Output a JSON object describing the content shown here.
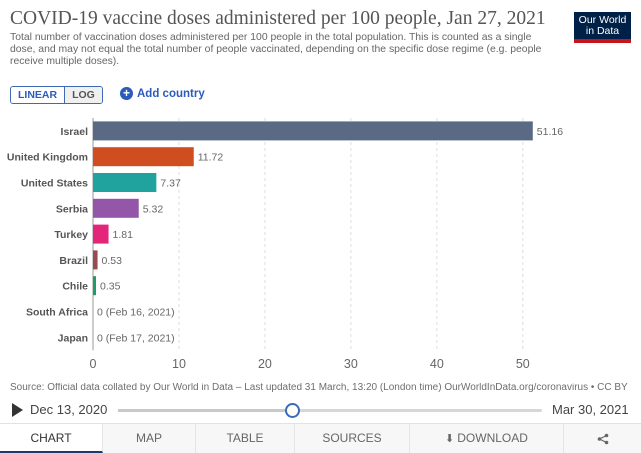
{
  "header": {
    "title": "COVID-19 vaccine doses administered per 100 people, Jan 27, 2021",
    "subtitle": "Total number of vaccination doses administered per 100 people in the total population. This is counted as a single dose, and may not equal the total number of people vaccinated, depending on the specific dose regime (e.g. people receive multiple doses).",
    "logo_line1": "Our World",
    "logo_line2": "in Data"
  },
  "controls": {
    "linear_label": "LINEAR",
    "log_label": "LOG",
    "add_country_label": "Add country",
    "add_icon": "plus-circle-icon"
  },
  "chart_data": {
    "type": "bar",
    "orientation": "horizontal",
    "categories": [
      "Israel",
      "United Kingdom",
      "United States",
      "Serbia",
      "Turkey",
      "Brazil",
      "Chile",
      "South Africa",
      "Japan"
    ],
    "values": [
      51.16,
      11.72,
      7.37,
      5.32,
      1.81,
      0.53,
      0.35,
      0,
      0
    ],
    "value_labels": [
      "51.16",
      "11.72",
      "7.37",
      "5.32",
      "1.81",
      "0.53",
      "0.35",
      "0 (Feb 16, 2021)",
      "0 (Feb 17, 2021)"
    ],
    "colors": [
      "#5a6a85",
      "#cf4d1f",
      "#20a39e",
      "#9356a8",
      "#e3267a",
      "#9b4a52",
      "#1f9b66",
      "#888888",
      "#888888"
    ],
    "xlim": [
      0,
      52
    ],
    "xticks": [
      0,
      10,
      20,
      30,
      40,
      50
    ],
    "grid": true,
    "axis_scale": "linear"
  },
  "footer": {
    "source_text": "Source: Official data collated by Our World in Data – Last updated 31 March, 13:20 (London time)",
    "source_link": "OurWorldInData.org/coronavirus • CC BY"
  },
  "timeline": {
    "start_label": "Dec 13, 2020",
    "end_label": "Mar 30, 2021",
    "position_fraction": 0.41
  },
  "tabs": [
    {
      "label": "CHART",
      "active": true
    },
    {
      "label": "MAP",
      "active": false
    },
    {
      "label": "TABLE",
      "active": false
    },
    {
      "label": "SOURCES",
      "active": false
    },
    {
      "label": "DOWNLOAD",
      "active": false
    },
    {
      "label": "",
      "active": false
    }
  ]
}
